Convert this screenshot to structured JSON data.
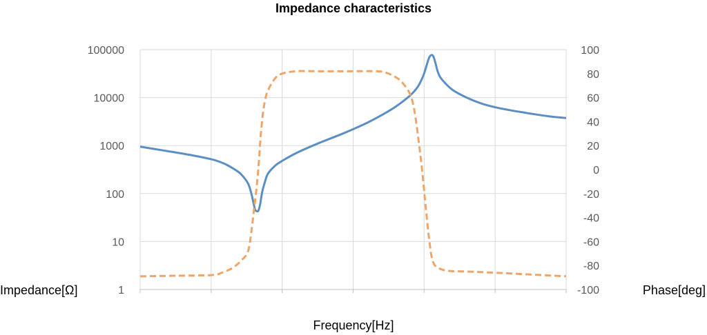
{
  "chart_data": {
    "type": "line",
    "title": "Impedance characteristics",
    "xlabel": "Frequency[Hz]",
    "ylabel_left": "Impedance[Ω]",
    "ylabel_right": "Phase[deg]",
    "left_axis": {
      "scale": "log",
      "range": [
        1,
        100000
      ],
      "ticks": [
        1,
        10,
        100,
        1000,
        10000,
        100000
      ],
      "tick_labels": [
        "1",
        "10",
        "100",
        "1000",
        "10000",
        "100000"
      ]
    },
    "right_axis": {
      "scale": "linear",
      "range": [
        -100,
        100
      ],
      "ticks": [
        -100,
        -80,
        -60,
        -40,
        -20,
        0,
        20,
        40,
        60,
        80,
        100
      ],
      "tick_labels": [
        "-100",
        "-80",
        "-60",
        "-40",
        "-20",
        "0",
        "20",
        "40",
        "60",
        "80",
        "100"
      ]
    },
    "x_axis": {
      "range": [
        0,
        6
      ],
      "tick_labels_shown": false
    },
    "grid": {
      "vertical": true,
      "horizontal": true
    },
    "series": [
      {
        "axis": "left",
        "style": "solid",
        "color": "#5b8ec4",
        "points": [
          [
            0.0,
            950
          ],
          [
            0.2,
            850
          ],
          [
            0.4,
            760
          ],
          [
            0.6,
            680
          ],
          [
            0.8,
            600
          ],
          [
            1.0,
            520
          ],
          [
            1.1,
            470
          ],
          [
            1.2,
            410
          ],
          [
            1.3,
            340
          ],
          [
            1.4,
            270
          ],
          [
            1.48,
            200
          ],
          [
            1.53,
            150
          ],
          [
            1.57,
            95
          ],
          [
            1.6,
            60
          ],
          [
            1.62,
            46
          ],
          [
            1.64,
            43
          ],
          [
            1.665,
            44
          ],
          [
            1.69,
            60
          ],
          [
            1.72,
            110
          ],
          [
            1.76,
            180
          ],
          [
            1.8,
            260
          ],
          [
            1.9,
            380
          ],
          [
            2.0,
            480
          ],
          [
            2.2,
            700
          ],
          [
            2.5,
            1100
          ],
          [
            2.8,
            1650
          ],
          [
            3.0,
            2200
          ],
          [
            3.2,
            3000
          ],
          [
            3.4,
            4300
          ],
          [
            3.6,
            6500
          ],
          [
            3.8,
            11000
          ],
          [
            3.9,
            16000
          ],
          [
            3.96,
            23000
          ],
          [
            4.0,
            32000
          ],
          [
            4.04,
            50000
          ],
          [
            4.07,
            68000
          ],
          [
            4.1,
            77000
          ],
          [
            4.13,
            72000
          ],
          [
            4.16,
            52000
          ],
          [
            4.2,
            32000
          ],
          [
            4.26,
            23000
          ],
          [
            4.4,
            14500
          ],
          [
            4.6,
            10000
          ],
          [
            4.8,
            7600
          ],
          [
            5.0,
            6300
          ],
          [
            5.2,
            5500
          ],
          [
            5.4,
            4900
          ],
          [
            5.6,
            4400
          ],
          [
            5.8,
            4000
          ],
          [
            6.0,
            3750
          ]
        ]
      },
      {
        "axis": "right",
        "style": "dashed",
        "color": "#efa567",
        "points": [
          [
            0.0,
            -89
          ],
          [
            0.5,
            -88.5
          ],
          [
            1.0,
            -88
          ],
          [
            1.15,
            -86
          ],
          [
            1.3,
            -82
          ],
          [
            1.42,
            -76
          ],
          [
            1.52,
            -68
          ],
          [
            1.57,
            -50
          ],
          [
            1.6,
            -35
          ],
          [
            1.64,
            -15
          ],
          [
            1.67,
            5
          ],
          [
            1.7,
            30
          ],
          [
            1.73,
            47
          ],
          [
            1.76,
            58
          ],
          [
            1.8,
            66
          ],
          [
            1.9,
            76
          ],
          [
            2.0,
            80
          ],
          [
            2.2,
            82
          ],
          [
            2.5,
            82
          ],
          [
            3.0,
            82
          ],
          [
            3.3,
            82
          ],
          [
            3.45,
            81
          ],
          [
            3.6,
            77
          ],
          [
            3.7,
            72
          ],
          [
            3.8,
            63
          ],
          [
            3.86,
            50
          ],
          [
            3.92,
            25
          ],
          [
            3.97,
            0
          ],
          [
            4.02,
            -30
          ],
          [
            4.07,
            -58
          ],
          [
            4.12,
            -76
          ],
          [
            4.2,
            -82
          ],
          [
            4.35,
            -84.5
          ],
          [
            4.6,
            -85
          ],
          [
            5.0,
            -86
          ],
          [
            5.5,
            -87.5
          ],
          [
            6.0,
            -89
          ]
        ]
      }
    ]
  }
}
